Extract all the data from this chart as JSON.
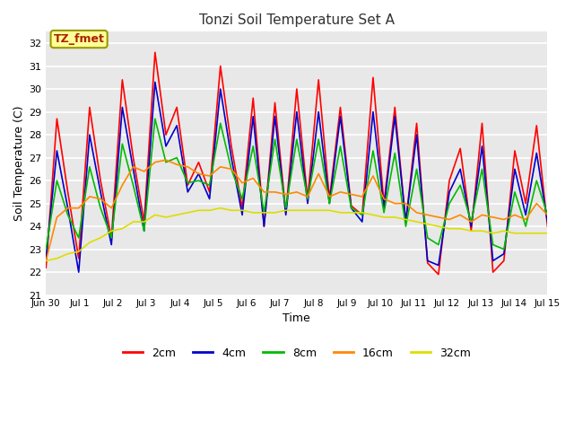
{
  "title": "Tonzi Soil Temperature Set A",
  "xlabel": "Time",
  "ylabel": "Soil Temperature (C)",
  "ylim": [
    21.0,
    32.5
  ],
  "yticks": [
    21.0,
    22.0,
    23.0,
    24.0,
    25.0,
    26.0,
    27.0,
    28.0,
    29.0,
    30.0,
    31.0,
    32.0
  ],
  "xtick_labels": [
    "Jun 30",
    "Jul 1",
    "Jul 2",
    "Jul 3",
    "Jul 4",
    "Jul 5",
    "Jul 6",
    "Jul 7",
    "Jul 8",
    "Jul 9",
    "Jul 10",
    "Jul 11",
    "Jul 12",
    "Jul 13",
    "Jul 14",
    "Jul 15"
  ],
  "colors": {
    "2cm": "#ff0000",
    "4cm": "#0000cc",
    "8cm": "#00bb00",
    "16cm": "#ff8800",
    "32cm": "#dddd00"
  },
  "fig_bg": "#f0f0f0",
  "plot_bg": "#e8e8e8",
  "annotation_text": "TZ_fmet",
  "annotation_bg": "#ffff99",
  "annotation_border": "#999900",
  "legend_labels": [
    "2cm",
    "4cm",
    "8cm",
    "16cm",
    "32cm"
  ],
  "series_2cm": [
    22.2,
    28.7,
    25.5,
    22.6,
    29.2,
    26.0,
    23.5,
    30.4,
    27.0,
    24.2,
    31.6,
    28.0,
    29.2,
    25.8,
    26.8,
    25.5,
    31.0,
    27.5,
    24.8,
    29.6,
    24.0,
    29.4,
    24.6,
    30.0,
    25.2,
    30.4,
    25.2,
    29.2,
    24.9,
    24.5,
    30.5,
    25.0,
    29.2,
    24.2,
    28.5,
    22.4,
    21.9,
    26.0,
    27.4,
    23.8,
    28.5,
    22.0,
    22.5,
    27.3,
    25.0,
    28.4,
    24.0
  ],
  "series_4cm": [
    22.6,
    27.3,
    24.8,
    22.0,
    28.0,
    25.5,
    23.2,
    29.2,
    26.5,
    23.8,
    30.3,
    27.5,
    28.4,
    25.5,
    26.3,
    25.2,
    30.0,
    27.0,
    24.5,
    28.8,
    24.0,
    28.8,
    24.5,
    29.0,
    25.0,
    29.0,
    25.0,
    28.8,
    24.8,
    24.2,
    29.0,
    24.8,
    28.8,
    24.2,
    28.0,
    22.5,
    22.3,
    25.5,
    26.5,
    24.0,
    27.5,
    22.5,
    22.8,
    26.5,
    24.5,
    27.2,
    24.2
  ],
  "series_8cm": [
    23.0,
    26.0,
    24.5,
    23.5,
    26.6,
    24.8,
    23.5,
    27.6,
    25.8,
    23.8,
    28.7,
    26.8,
    27.0,
    25.9,
    26.0,
    25.8,
    28.5,
    26.5,
    25.2,
    27.5,
    24.6,
    27.8,
    24.8,
    27.8,
    25.2,
    27.8,
    25.0,
    27.5,
    24.8,
    24.5,
    27.3,
    24.6,
    27.2,
    24.0,
    26.5,
    23.5,
    23.2,
    25.0,
    25.8,
    24.2,
    26.5,
    23.2,
    23.0,
    25.5,
    24.0,
    26.0,
    24.5
  ],
  "series_16cm": [
    22.5,
    24.4,
    24.8,
    24.8,
    25.3,
    25.2,
    24.8,
    25.8,
    26.6,
    26.4,
    26.8,
    26.9,
    26.7,
    26.6,
    26.3,
    26.2,
    26.6,
    26.5,
    25.9,
    26.1,
    25.5,
    25.5,
    25.4,
    25.5,
    25.3,
    26.3,
    25.3,
    25.5,
    25.4,
    25.3,
    26.2,
    25.2,
    25.0,
    25.0,
    24.6,
    24.5,
    24.4,
    24.3,
    24.5,
    24.2,
    24.5,
    24.4,
    24.3,
    24.5,
    24.3,
    25.0,
    24.5
  ],
  "series_32cm": [
    22.5,
    22.6,
    22.8,
    22.9,
    23.3,
    23.5,
    23.8,
    23.9,
    24.2,
    24.2,
    24.5,
    24.4,
    24.5,
    24.6,
    24.7,
    24.7,
    24.8,
    24.7,
    24.7,
    24.6,
    24.6,
    24.6,
    24.7,
    24.7,
    24.7,
    24.7,
    24.7,
    24.6,
    24.6,
    24.6,
    24.5,
    24.4,
    24.4,
    24.3,
    24.2,
    24.1,
    24.0,
    23.9,
    23.9,
    23.8,
    23.8,
    23.7,
    23.8,
    23.7,
    23.7,
    23.7,
    23.7
  ]
}
